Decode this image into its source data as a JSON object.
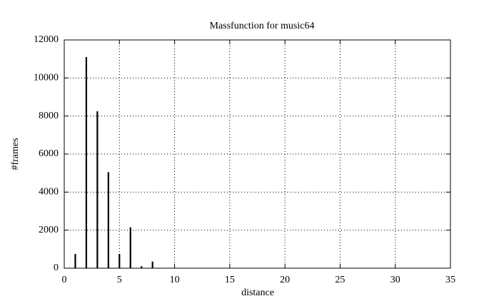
{
  "chart_data": {
    "type": "impulse",
    "title": "Massfunction for music64",
    "x_label": "distance",
    "y_label": "#frames",
    "x": [
      1,
      2,
      3,
      4,
      5,
      6,
      7,
      8
    ],
    "values": [
      750,
      11100,
      8250,
      5050,
      750,
      2150,
      100,
      350
    ],
    "color": "#000000",
    "xlim": [
      0,
      35
    ],
    "xticks": [
      0,
      5,
      10,
      15,
      20,
      25,
      30,
      35
    ],
    "ylim": [
      0,
      12000
    ],
    "yticks": [
      0,
      2000,
      4000,
      6000,
      8000,
      10000,
      12000
    ],
    "grid": true
  }
}
